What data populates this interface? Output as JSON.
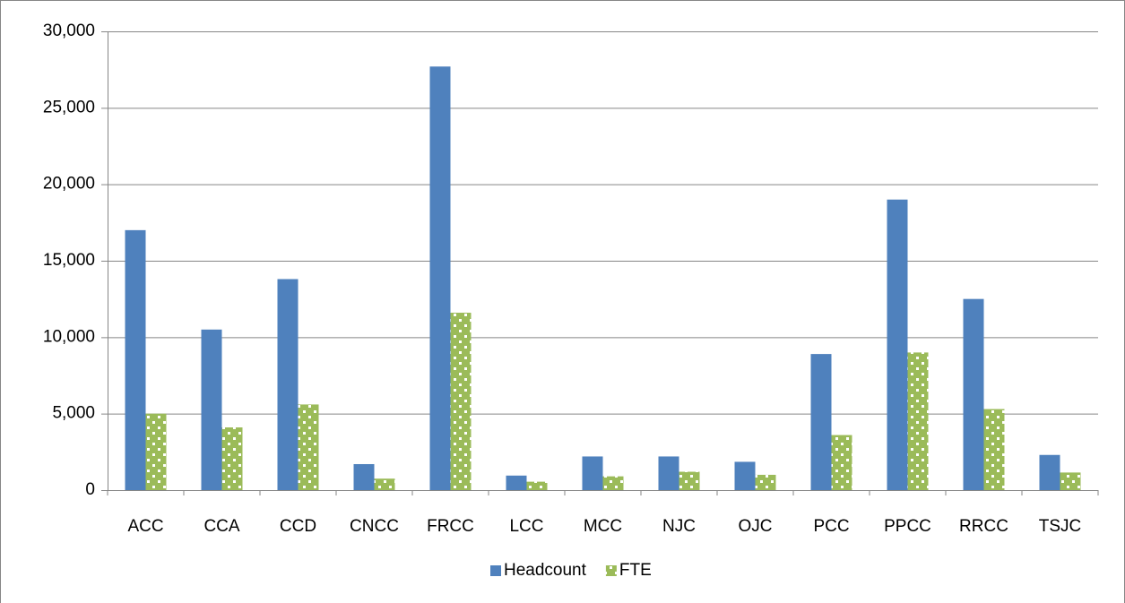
{
  "chart_data": {
    "type": "bar",
    "categories": [
      "ACC",
      "CCA",
      "CCD",
      "CNCC",
      "FRCC",
      "LCC",
      "MCC",
      "NJC",
      "OJC",
      "PCC",
      "PPCC",
      "RRCC",
      "TSJC"
    ],
    "series": [
      {
        "name": "Headcount",
        "color": "#4f81bd",
        "values": [
          17000,
          10500,
          13800,
          1700,
          27700,
          950,
          2200,
          2200,
          1850,
          8900,
          19000,
          12500,
          2300
        ]
      },
      {
        "name": "FTE",
        "color": "#9bbb59",
        "pattern": "dots",
        "values": [
          5000,
          4100,
          5600,
          750,
          11600,
          550,
          900,
          1200,
          1000,
          3600,
          9000,
          5300,
          1150
        ]
      }
    ],
    "ylim": [
      0,
      30000
    ],
    "yticks": [
      0,
      {
        "value": 5000,
        "label": "5,000"
      },
      {
        "value": 10000,
        "label": "10,000"
      },
      {
        "value": 15000,
        "label": "15,000"
      },
      {
        "value": 20000,
        "label": "20,000"
      },
      {
        "value": 25000,
        "label": "25,000"
      },
      {
        "value": 30000,
        "label": "30,000"
      }
    ],
    "grid": true,
    "legend": "bottom"
  }
}
